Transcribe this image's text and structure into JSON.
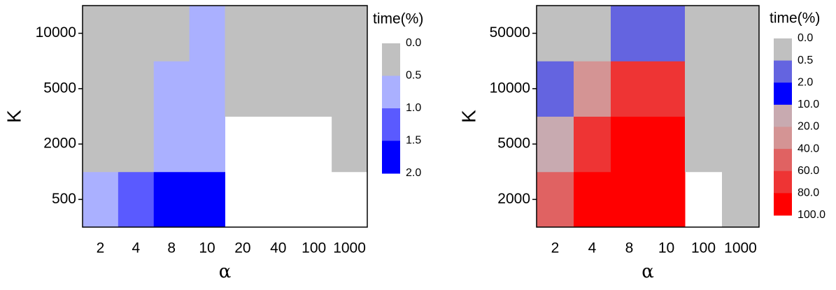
{
  "chart_data": [
    {
      "type": "heatmap",
      "x_label": "α",
      "y_label": "K",
      "x": [
        "2",
        "4",
        "8",
        "10",
        "20",
        "40",
        "100",
        "1000"
      ],
      "y": [
        "500",
        "2000",
        "5000",
        "10000"
      ],
      "z": [
        [
          0.7,
          1.2,
          1.8,
          1.8,
          null,
          null,
          null,
          null
        ],
        [
          0.2,
          0.2,
          0.7,
          0.7,
          null,
          null,
          null,
          0.2
        ],
        [
          0.2,
          0.2,
          0.7,
          0.7,
          0.2,
          0.2,
          0.2,
          0.2
        ],
        [
          0.2,
          0.2,
          0.2,
          0.7,
          0.2,
          0.2,
          0.2,
          0.2
        ]
      ],
      "colorbar": {
        "title": "time(%)",
        "ticks": [
          {
            "value": 0,
            "label": "0.0"
          },
          0.5,
          {
            "value": 1,
            "label": "1.0"
          },
          1.5,
          {
            "value": 2,
            "label": "2.0"
          }
        ],
        "colors": [
          "#c0c0c0",
          "#aab0ff",
          "#5a5aff",
          "#0000ff"
        ]
      }
    },
    {
      "type": "heatmap",
      "x_label": "α",
      "y_label": "K",
      "x": [
        "2",
        "4",
        "8",
        "10",
        "100",
        "1000"
      ],
      "y": [
        "2000",
        "5000",
        "10000",
        "50000"
      ],
      "z": [
        [
          50,
          90,
          90,
          90,
          null,
          0.2
        ],
        [
          15,
          70,
          90,
          90,
          0.2,
          0.2
        ],
        [
          1,
          30,
          70,
          70,
          0.2,
          0.2
        ],
        [
          0.2,
          0.2,
          1,
          1,
          0.2,
          0.2
        ]
      ],
      "colorbar": {
        "title": "time(%)",
        "ticks": [
          {
            "value": 0,
            "label": "0.0"
          },
          0.5,
          {
            "value": 2,
            "label": "2.0"
          },
          {
            "value": 10,
            "label": "10.0"
          },
          {
            "value": 20,
            "label": "20.0"
          },
          {
            "value": 40,
            "label": "40.0"
          },
          {
            "value": 60,
            "label": "60.0"
          },
          {
            "value": 80,
            "label": "80.0"
          },
          {
            "value": 100,
            "label": "100.0"
          }
        ],
        "colors": [
          "#c0c0c0",
          "#6464e0",
          "#0000ff",
          "#c8aab0",
          "#d49494",
          "#e06262",
          "#ee3434",
          "#ff0000"
        ]
      }
    }
  ]
}
